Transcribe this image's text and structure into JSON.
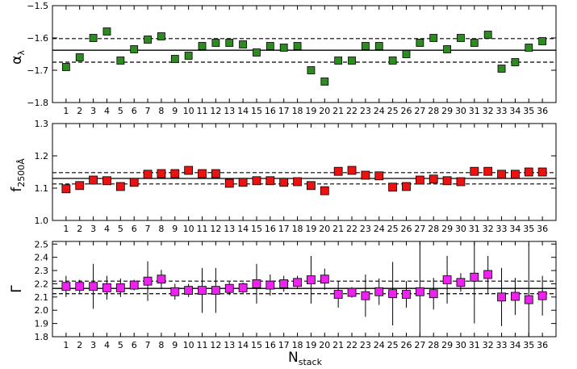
{
  "chart_data": [
    {
      "type": "scatter",
      "ylabel_main": "α",
      "ylabel_sub": "λ",
      "ylim": [
        -1.8,
        -1.5
      ],
      "yticks": [
        -1.8,
        -1.7,
        -1.6,
        -1.5
      ],
      "ytick_labels": [
        "−1.8",
        "−1.7",
        "−1.6",
        "−1.5"
      ],
      "mean": -1.638,
      "band": [
        -1.675,
        -1.602
      ],
      "color": "#2e8b22",
      "x": [
        1,
        2,
        3,
        4,
        5,
        6,
        7,
        8,
        9,
        10,
        11,
        12,
        13,
        14,
        15,
        16,
        17,
        18,
        19,
        20,
        21,
        22,
        23,
        24,
        25,
        26,
        27,
        28,
        29,
        30,
        31,
        32,
        33,
        34,
        35,
        36
      ],
      "y": [
        -1.69,
        -1.66,
        -1.6,
        -1.58,
        -1.67,
        -1.635,
        -1.605,
        -1.595,
        -1.665,
        -1.655,
        -1.625,
        -1.615,
        -1.615,
        -1.62,
        -1.645,
        -1.625,
        -1.63,
        -1.625,
        -1.7,
        -1.735,
        -1.67,
        -1.67,
        -1.625,
        -1.625,
        -1.67,
        -1.65,
        -1.615,
        -1.6,
        -1.635,
        -1.6,
        -1.615,
        -1.59,
        -1.695,
        -1.675,
        -1.63,
        -1.61
      ],
      "yerr": []
    },
    {
      "type": "scatter",
      "ylabel_main": "f",
      "ylabel_sub": "2500Å",
      "ylim": [
        1.0,
        1.3
      ],
      "yticks": [
        1.0,
        1.1,
        1.2,
        1.3
      ],
      "ytick_labels": [
        "1.0",
        "1.1",
        "1.2",
        "1.3"
      ],
      "mean": 1.13,
      "band": [
        1.113,
        1.148
      ],
      "color": "#ee1111",
      "x": [
        1,
        2,
        3,
        4,
        5,
        6,
        7,
        8,
        9,
        10,
        11,
        12,
        13,
        14,
        15,
        16,
        17,
        18,
        19,
        20,
        21,
        22,
        23,
        24,
        25,
        26,
        27,
        28,
        29,
        30,
        31,
        32,
        33,
        34,
        35,
        36
      ],
      "y": [
        1.098,
        1.108,
        1.125,
        1.123,
        1.105,
        1.118,
        1.143,
        1.145,
        1.145,
        1.155,
        1.145,
        1.145,
        1.115,
        1.118,
        1.123,
        1.123,
        1.118,
        1.12,
        1.108,
        1.092,
        1.152,
        1.155,
        1.14,
        1.138,
        1.103,
        1.105,
        1.125,
        1.128,
        1.123,
        1.12,
        1.152,
        1.152,
        1.143,
        1.143,
        1.15,
        1.15
      ],
      "yerr": []
    },
    {
      "type": "scatter",
      "ylabel_main": "Γ",
      "ylabel_sub": "",
      "ylim": [
        1.8,
        2.52
      ],
      "yticks": [
        1.8,
        1.9,
        2.0,
        2.1,
        2.2,
        2.3,
        2.4,
        2.5
      ],
      "ytick_labels": [
        "1.8",
        "1.9",
        "2.0",
        "2.1",
        "2.2",
        "2.3",
        "2.4",
        "2.5"
      ],
      "mean": 2.165,
      "band": [
        2.125,
        2.22
      ],
      "color": "#ee22ee",
      "x": [
        1,
        2,
        3,
        4,
        5,
        6,
        7,
        8,
        9,
        10,
        11,
        12,
        13,
        14,
        15,
        16,
        17,
        18,
        19,
        20,
        21,
        22,
        23,
        24,
        25,
        26,
        27,
        28,
        29,
        30,
        31,
        32,
        33,
        34,
        35,
        36
      ],
      "y": [
        2.18,
        2.18,
        2.18,
        2.17,
        2.17,
        2.19,
        2.22,
        2.235,
        2.14,
        2.15,
        2.15,
        2.15,
        2.165,
        2.17,
        2.2,
        2.19,
        2.2,
        2.21,
        2.23,
        2.235,
        2.12,
        2.135,
        2.11,
        2.14,
        2.125,
        2.12,
        2.14,
        2.125,
        2.23,
        2.21,
        2.25,
        2.27,
        2.1,
        2.105,
        2.08,
        2.11
      ],
      "yerr": [
        0.08,
        0.05,
        0.17,
        0.09,
        0.07,
        0.04,
        0.15,
        0.07,
        0.06,
        0.05,
        0.17,
        0.17,
        0.05,
        0.04,
        0.15,
        0.08,
        0.06,
        0.05,
        0.18,
        0.08,
        0.1,
        0.04,
        0.16,
        0.1,
        0.24,
        0.1,
        0.5,
        0.12,
        0.18,
        0.07,
        0.35,
        0.14,
        0.22,
        0.14,
        0.42,
        0.15
      ]
    }
  ],
  "xticks": [
    1,
    2,
    3,
    4,
    5,
    6,
    7,
    8,
    9,
    10,
    11,
    12,
    13,
    14,
    15,
    16,
    17,
    18,
    19,
    20,
    21,
    22,
    23,
    24,
    25,
    26,
    27,
    28,
    29,
    30,
    31,
    32,
    33,
    34,
    35,
    36
  ],
  "xlabel_main": "N",
  "xlabel_sub": "stack",
  "xlim": [
    0,
    37
  ]
}
